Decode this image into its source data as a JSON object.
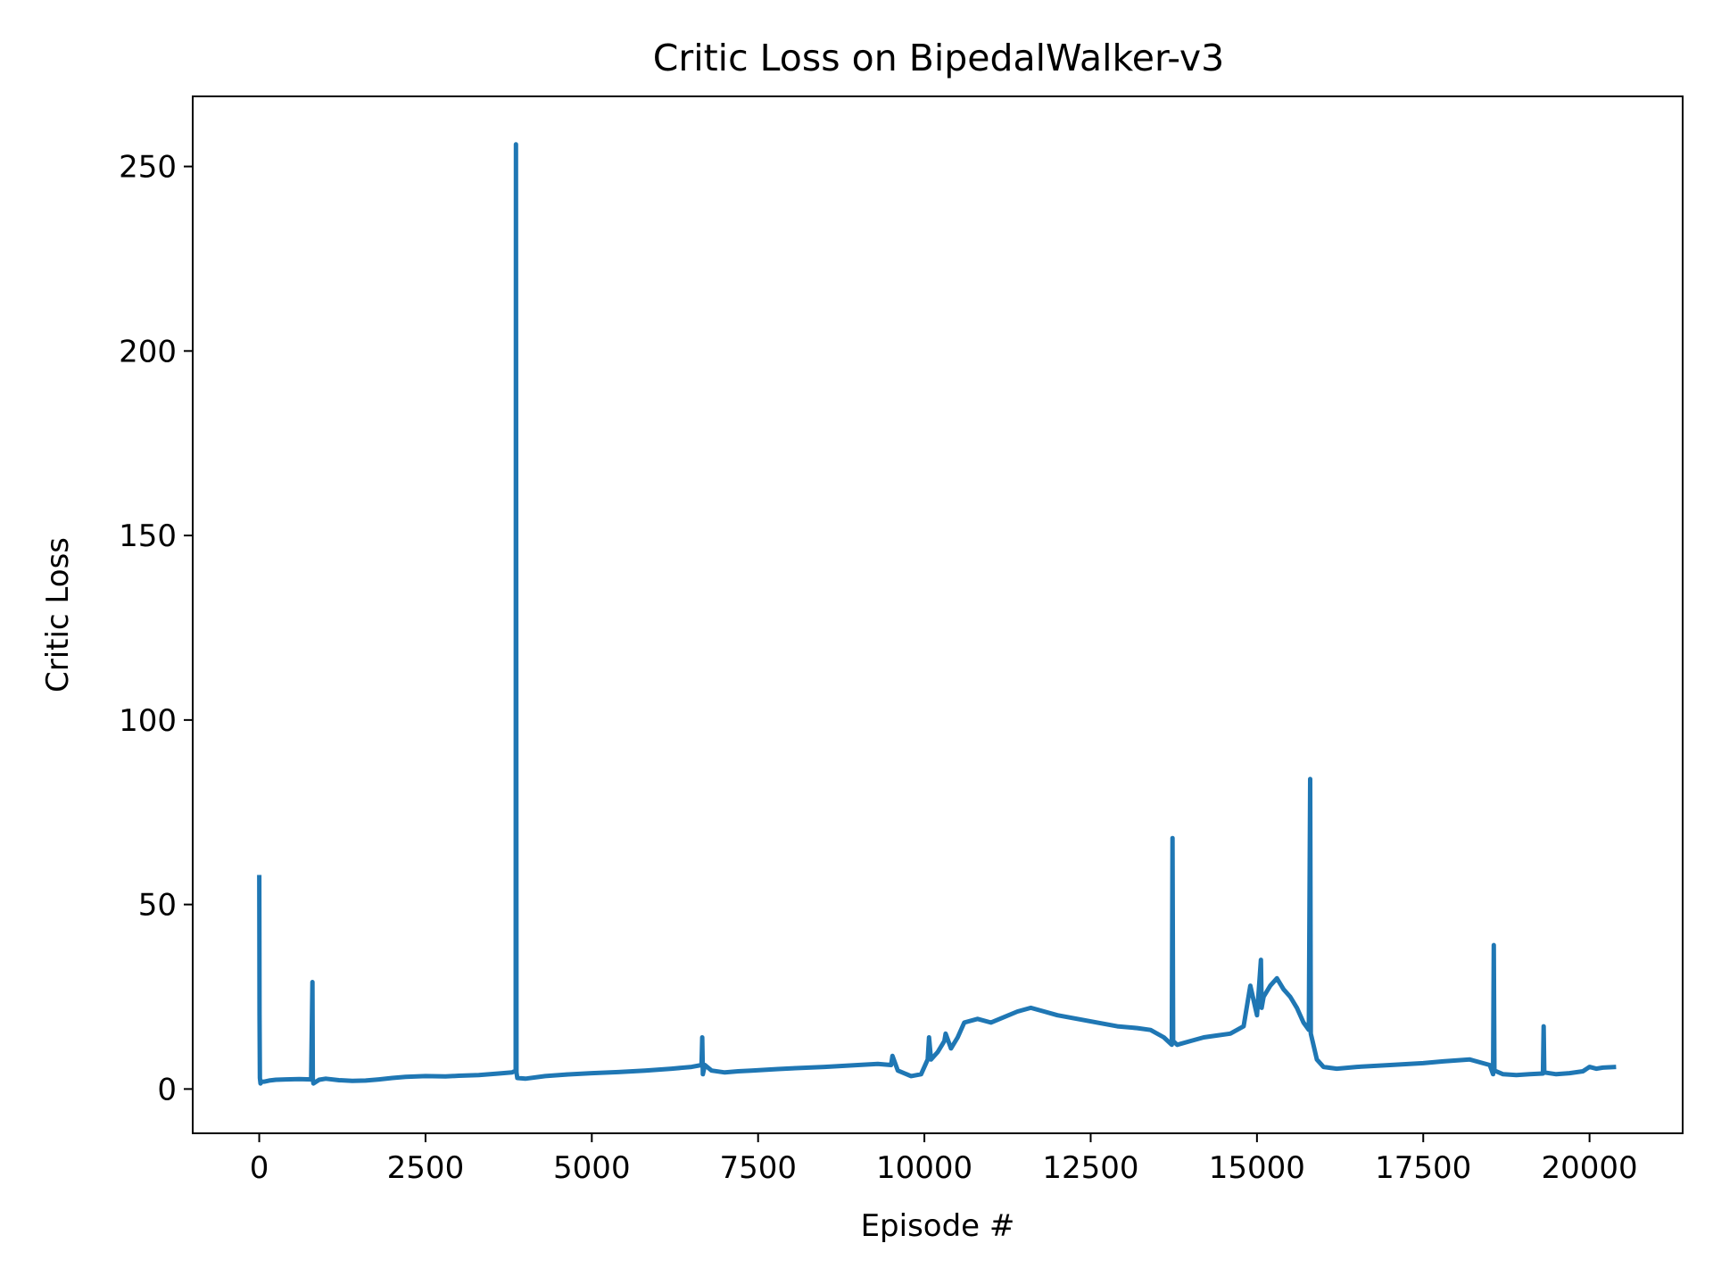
{
  "chart_data": {
    "type": "line",
    "title": "Critic Loss on BipedalWalker-v3",
    "xlabel": "Episode #",
    "ylabel": "Critic Loss",
    "xlim": [
      -1000,
      21400
    ],
    "ylim": [
      -12,
      269
    ],
    "xticks": [
      0,
      2500,
      5000,
      7500,
      10000,
      12500,
      15000,
      17500,
      20000
    ],
    "yticks": [
      0,
      50,
      100,
      150,
      200,
      250
    ],
    "grid": false,
    "legend": "none",
    "series": [
      {
        "color": "#1f77b4",
        "x": [
          0,
          5,
          10,
          20,
          40,
          80,
          150,
          250,
          400,
          600,
          780,
          800,
          805,
          815,
          900,
          1000,
          1200,
          1400,
          1600,
          1800,
          2000,
          2200,
          2500,
          2800,
          3000,
          3300,
          3600,
          3800,
          3855,
          3860,
          3868,
          3880,
          4000,
          4300,
          4600,
          5000,
          5400,
          5800,
          6200,
          6500,
          6650,
          6660,
          6670,
          6700,
          6800,
          7000,
          7200,
          7400,
          7600,
          7800,
          8000,
          8500,
          9000,
          9300,
          9500,
          9520,
          9600,
          9800,
          9950,
          10050,
          10070,
          10100,
          10200,
          10300,
          10320,
          10400,
          10500,
          10600,
          10800,
          11000,
          11200,
          11400,
          11600,
          11800,
          12000,
          12300,
          12600,
          12900,
          13200,
          13400,
          13600,
          13720,
          13730,
          13740,
          13800,
          14000,
          14200,
          14400,
          14600,
          14800,
          14900,
          15000,
          15060,
          15070,
          15100,
          15200,
          15300,
          15400,
          15500,
          15600,
          15700,
          15780,
          15800,
          15810,
          15900,
          16000,
          16200,
          16500,
          17000,
          17500,
          17800,
          18200,
          18500,
          18550,
          18560,
          18570,
          18700,
          18900,
          19100,
          19300,
          19310,
          19320,
          19500,
          19700,
          19900,
          20000,
          20100,
          20200,
          20400
        ],
        "y": [
          58,
          20,
          3,
          1.5,
          2,
          2,
          2.3,
          2.5,
          2.6,
          2.7,
          2.6,
          29,
          2.8,
          1.5,
          2.5,
          2.8,
          2.4,
          2.2,
          2.3,
          2.6,
          3,
          3.3,
          3.5,
          3.4,
          3.6,
          3.8,
          4.2,
          4.5,
          5,
          256,
          4.5,
          3,
          2.8,
          3.5,
          3.9,
          4.3,
          4.6,
          5,
          5.5,
          6,
          6.5,
          14,
          4,
          6.5,
          5,
          4.5,
          4.8,
          5,
          5.2,
          5.4,
          5.6,
          6,
          6.5,
          6.8,
          6.5,
          9,
          5,
          3.5,
          4,
          8,
          14,
          8,
          10,
          13,
          15,
          11,
          14,
          18,
          19,
          18,
          19.5,
          21,
          22,
          21,
          20,
          19,
          18,
          17,
          16.5,
          16,
          14,
          12,
          68,
          13,
          12,
          13,
          14,
          14.5,
          15,
          17,
          28,
          20,
          35,
          22,
          25,
          28,
          30,
          27,
          25,
          22,
          18,
          16,
          84,
          15,
          8,
          6,
          5.5,
          6,
          6.5,
          7,
          7.5,
          8,
          6.5,
          4,
          39,
          5,
          4,
          3.8,
          4,
          4.2,
          17,
          4.5,
          4,
          4.3,
          4.8,
          6,
          5.5,
          5.8,
          6
        ]
      }
    ]
  }
}
